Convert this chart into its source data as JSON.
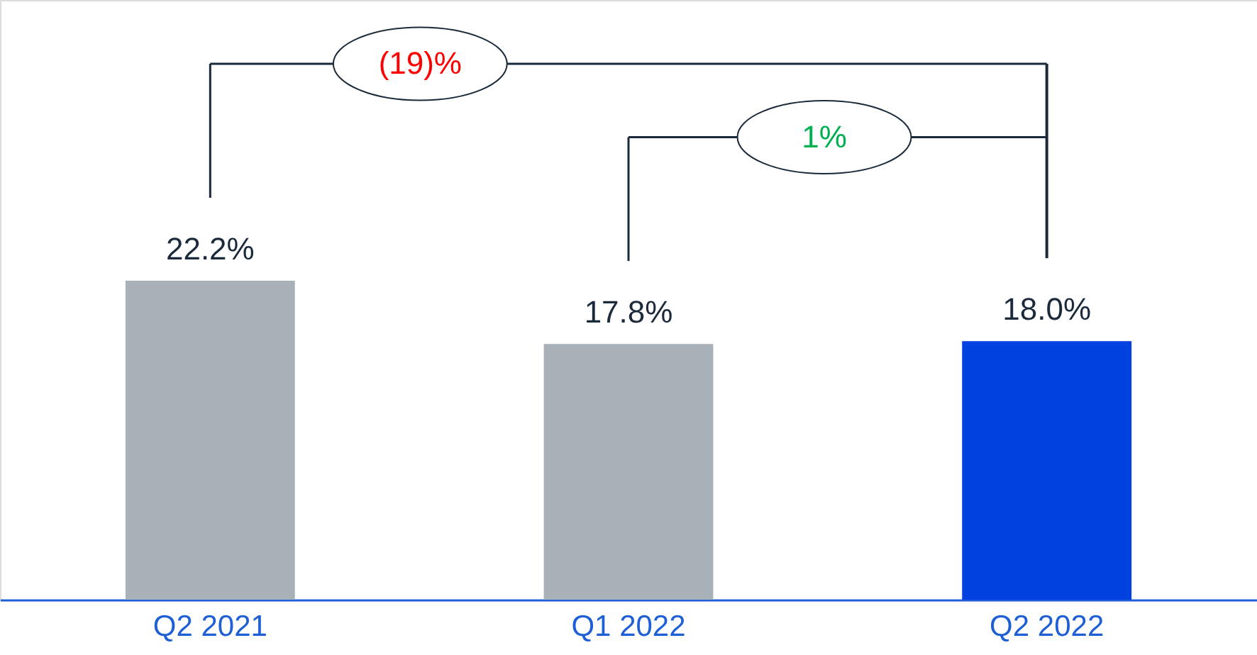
{
  "chart_data": {
    "type": "bar",
    "categories": [
      "Q2 2021",
      "Q1 2022",
      "Q2 2022"
    ],
    "values": [
      22.2,
      17.8,
      18.0
    ],
    "colors": [
      "#a9b1b8",
      "#a9b1b8",
      "#0041e0"
    ],
    "value_labels": [
      "22.2%",
      "17.8%",
      "18.0%"
    ],
    "annotations": [
      "(19)%",
      "1%"
    ],
    "grid": false
  }
}
